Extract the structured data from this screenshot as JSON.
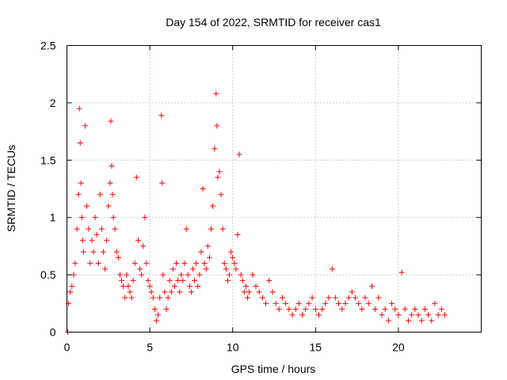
{
  "chart_data": {
    "type": "scatter",
    "title": "Day 154 of 2022, SRMTID for receiver cas1",
    "xlabel": "GPS time / hours",
    "ylabel": "SRMTID / TECUs",
    "xlim": [
      0,
      25
    ],
    "ylim": [
      0,
      2.5
    ],
    "xticks": [
      0,
      5,
      10,
      15,
      20
    ],
    "xtick_labels": [
      "0",
      "5",
      "10",
      "15",
      "20"
    ],
    "yticks": [
      0,
      0.5,
      1,
      1.5,
      2,
      2.5
    ],
    "ytick_labels": [
      "0",
      "0.5",
      "1",
      "1.5",
      "2",
      "2.5"
    ],
    "grid": true,
    "marker": "plus",
    "color": "#ff0000",
    "series": [
      {
        "name": "SRMTID",
        "x": [
          0.05,
          0.1,
          0.2,
          0.3,
          0.4,
          0.5,
          0.6,
          0.7,
          0.75,
          0.8,
          0.85,
          0.9,
          0.95,
          1.0,
          1.1,
          1.2,
          1.3,
          1.4,
          1.5,
          1.6,
          1.7,
          1.8,
          1.9,
          2.0,
          2.1,
          2.2,
          2.3,
          2.4,
          2.5,
          2.6,
          2.65,
          2.7,
          2.75,
          2.8,
          2.9,
          3.0,
          3.1,
          3.2,
          3.3,
          3.4,
          3.5,
          3.6,
          3.7,
          3.8,
          3.9,
          4.0,
          4.1,
          4.2,
          4.3,
          4.4,
          4.5,
          4.6,
          4.7,
          4.8,
          4.9,
          5.0,
          5.1,
          5.2,
          5.3,
          5.4,
          5.5,
          5.6,
          5.7,
          5.75,
          5.8,
          5.9,
          6.0,
          6.1,
          6.2,
          6.3,
          6.4,
          6.5,
          6.6,
          6.7,
          6.8,
          6.9,
          7.0,
          7.1,
          7.2,
          7.3,
          7.4,
          7.5,
          7.6,
          7.7,
          7.8,
          7.9,
          8.0,
          8.1,
          8.2,
          8.3,
          8.4,
          8.5,
          8.6,
          8.7,
          8.8,
          8.9,
          9.0,
          9.05,
          9.1,
          9.2,
          9.3,
          9.4,
          9.5,
          9.6,
          9.7,
          9.8,
          9.9,
          10.0,
          10.1,
          10.2,
          10.3,
          10.4,
          10.5,
          10.6,
          10.7,
          10.8,
          10.9,
          11.0,
          11.2,
          11.4,
          11.6,
          11.8,
          12.0,
          12.2,
          12.4,
          12.6,
          12.8,
          13.0,
          13.2,
          13.4,
          13.6,
          13.8,
          14.0,
          14.2,
          14.4,
          14.6,
          14.8,
          15.0,
          15.2,
          15.4,
          15.6,
          15.8,
          16.0,
          16.2,
          16.4,
          16.6,
          16.8,
          17.0,
          17.2,
          17.4,
          17.6,
          17.8,
          18.0,
          18.2,
          18.4,
          18.6,
          18.8,
          19.0,
          19.2,
          19.4,
          19.6,
          19.8,
          20.0,
          20.2,
          20.4,
          20.6,
          20.8,
          21.0,
          21.2,
          21.4,
          21.6,
          21.8,
          22.0,
          22.2,
          22.4,
          22.6,
          22.8
        ],
        "y": [
          0.0,
          0.25,
          0.35,
          0.4,
          0.5,
          0.6,
          0.9,
          1.2,
          1.95,
          1.65,
          1.3,
          1.0,
          0.8,
          0.7,
          1.8,
          1.1,
          0.9,
          0.6,
          0.8,
          0.7,
          1.0,
          0.85,
          0.6,
          1.2,
          0.9,
          0.7,
          0.55,
          0.8,
          1.1,
          1.3,
          1.84,
          1.45,
          1.2,
          1.0,
          0.9,
          0.7,
          0.65,
          0.5,
          0.45,
          0.4,
          0.3,
          0.5,
          0.4,
          0.35,
          0.3,
          0.45,
          0.6,
          1.35,
          0.8,
          0.55,
          0.5,
          0.75,
          1.0,
          0.6,
          0.45,
          0.4,
          0.35,
          0.3,
          0.2,
          0.1,
          0.15,
          0.3,
          1.89,
          1.3,
          0.5,
          0.35,
          0.2,
          0.3,
          0.45,
          0.35,
          0.55,
          0.4,
          0.6,
          0.45,
          0.35,
          0.5,
          0.45,
          0.6,
          0.9,
          0.5,
          0.4,
          0.35,
          0.55,
          0.45,
          0.6,
          0.4,
          0.5,
          0.7,
          1.25,
          0.6,
          0.55,
          0.75,
          0.65,
          0.9,
          1.1,
          1.6,
          2.08,
          1.8,
          1.35,
          1.4,
          1.2,
          0.9,
          0.6,
          0.55,
          0.45,
          0.5,
          0.7,
          0.65,
          0.6,
          0.55,
          0.85,
          1.55,
          0.5,
          0.45,
          0.35,
          0.4,
          0.3,
          0.35,
          0.5,
          0.4,
          0.35,
          0.3,
          0.25,
          0.45,
          0.35,
          0.25,
          0.2,
          0.3,
          0.25,
          0.2,
          0.15,
          0.2,
          0.25,
          0.15,
          0.2,
          0.25,
          0.3,
          0.2,
          0.15,
          0.2,
          0.25,
          0.3,
          0.55,
          0.3,
          0.25,
          0.2,
          0.25,
          0.3,
          0.35,
          0.3,
          0.25,
          0.2,
          0.3,
          0.25,
          0.4,
          0.2,
          0.3,
          0.15,
          0.2,
          0.1,
          0.25,
          0.2,
          0.15,
          0.52,
          0.2,
          0.1,
          0.15,
          0.2,
          0.15,
          0.1,
          0.2,
          0.15,
          0.1,
          0.25,
          0.15,
          0.2,
          0.15
        ]
      }
    ]
  }
}
